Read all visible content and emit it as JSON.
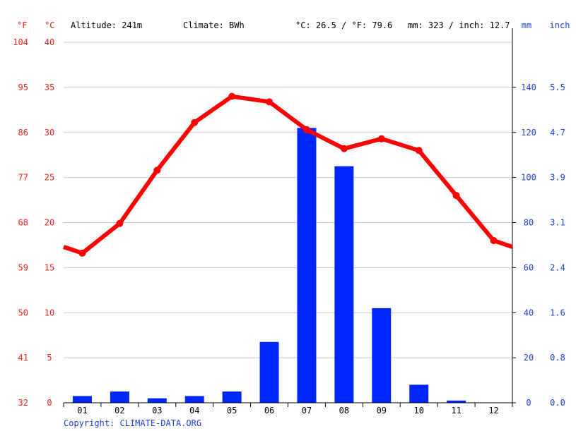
{
  "header": {
    "unit_f": "°F",
    "unit_c": "°C",
    "altitude": "Altitude: 241m",
    "climate": "Climate: BWh",
    "temp_avg": "°C: 26.5 / °F: 79.6",
    "precip_total": "mm: 323 / inch: 12.7",
    "unit_mm": "mm",
    "unit_inch": "inch"
  },
  "copyright": "Copyright: CLIMATE-DATA.ORG",
  "colors": {
    "temperature": "#ff0000",
    "precipitation": "#0027ff",
    "grid": "#cccccc",
    "axis": "#000000",
    "text": "#000000",
    "temp_axis_text": "#e8231f",
    "precip_axis_text": "#1f3fdc"
  },
  "chart_data": {
    "type": "bar+line",
    "categories": [
      "01",
      "02",
      "03",
      "04",
      "05",
      "06",
      "07",
      "08",
      "09",
      "10",
      "11",
      "12"
    ],
    "series": [
      {
        "type": "line",
        "axis": "left",
        "values": [
          16.6,
          19.9,
          25.8,
          31.1,
          34.0,
          33.4,
          30.3,
          28.2,
          29.3,
          28.0,
          23.0,
          18.0
        ],
        "start_value": 17.3,
        "end_value": 17.3
      },
      {
        "type": "bar",
        "axis": "right",
        "values": [
          3,
          5,
          2,
          3,
          5,
          27,
          122,
          105,
          42,
          8,
          1,
          0
        ]
      }
    ],
    "left_axis": {
      "ylim": [
        0,
        40
      ],
      "ticks_c": [
        "0",
        "5",
        "10",
        "15",
        "20",
        "25",
        "30",
        "35",
        "40"
      ],
      "ticks_f": [
        "32",
        "41",
        "50",
        "59",
        "68",
        "77",
        "86",
        "95",
        "104"
      ]
    },
    "right_axis": {
      "ylim": [
        0,
        160
      ],
      "ticks_mm": [
        "0",
        "20",
        "40",
        "60",
        "80",
        "100",
        "120",
        "140"
      ],
      "ticks_inch": [
        "0.0",
        "0.8",
        "1.6",
        "2.4",
        "3.1",
        "3.9",
        "4.7",
        "5.5"
      ]
    },
    "grid": true
  }
}
